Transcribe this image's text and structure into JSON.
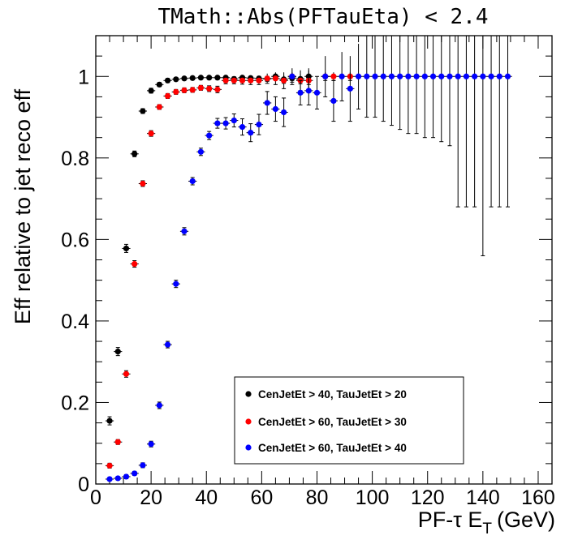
{
  "chart_data": {
    "type": "scatter",
    "title": "TMath::Abs(PFTauEta) < 2.4",
    "xlabel": "PF-τ E",
    "xlabel_subscript": "T",
    "xlabel_unit": "(GeV)",
    "ylabel": "Eff relative to jet reco eff",
    "xlim": [
      0,
      165
    ],
    "ylim": [
      0,
      1.1
    ],
    "x_ticks": [
      0,
      20,
      40,
      60,
      80,
      100,
      120,
      140,
      160
    ],
    "x_tick_labels": [
      "0",
      "20",
      "40",
      "60",
      "80",
      "100",
      "120",
      "140",
      "160"
    ],
    "y_ticks": [
      0,
      0.2,
      0.4,
      0.6,
      0.8,
      1
    ],
    "y_tick_labels": [
      "0",
      "0.2",
      "0.4",
      "0.6",
      "0.8",
      "1"
    ],
    "grid": false,
    "legend_position": "bottom-right",
    "series": [
      {
        "name": "CenJetEt > 40, TauJetEt > 20",
        "color": "#000000",
        "x": [
          5,
          8,
          11,
          14,
          17,
          20,
          23,
          26,
          29,
          32,
          35,
          38,
          41,
          44,
          47,
          50,
          53,
          56,
          59,
          62,
          65,
          68,
          71,
          74,
          77
        ],
        "y": [
          0.155,
          0.325,
          0.578,
          0.81,
          0.915,
          0.965,
          0.98,
          0.99,
          0.993,
          0.995,
          0.996,
          0.997,
          0.997,
          0.997,
          0.997,
          0.994,
          0.997,
          0.996,
          0.995,
          0.994,
          1.0,
          0.993,
          0.996,
          0.994,
          1.0
        ],
        "err": [
          0.01,
          0.01,
          0.01,
          0.007,
          0.006,
          0.006,
          0.005,
          0.005,
          0.004,
          0.004,
          0.004,
          0.004,
          0.004,
          0.004,
          0.005,
          0.005,
          0.005,
          0.005,
          0.006,
          0.006,
          0.008,
          0.01,
          0.01,
          0.012,
          0.02
        ]
      },
      {
        "name": "CenJetEt > 60, TauJetEt > 30",
        "color": "#ff0000",
        "x": [
          5,
          8,
          11,
          14,
          17,
          20,
          23,
          26,
          29,
          32,
          35,
          38,
          41,
          44,
          47,
          50,
          53,
          56,
          59,
          62,
          65,
          68,
          71,
          74,
          77,
          83,
          86,
          92
        ],
        "y": [
          0.045,
          0.103,
          0.27,
          0.54,
          0.737,
          0.86,
          0.925,
          0.952,
          0.962,
          0.966,
          0.967,
          0.972,
          0.97,
          0.968,
          0.99,
          0.99,
          0.99,
          0.99,
          0.99,
          0.995,
          0.995,
          0.99,
          1.0,
          0.99,
          0.99,
          1.0,
          1.0,
          1.0
        ],
        "err": [
          0.006,
          0.006,
          0.008,
          0.008,
          0.007,
          0.007,
          0.006,
          0.006,
          0.006,
          0.006,
          0.006,
          0.006,
          0.007,
          0.008,
          0.008,
          0.008,
          0.009,
          0.01,
          0.01,
          0.012,
          0.015,
          0.02,
          0.02,
          0.025,
          0.025,
          0.01,
          0.01,
          0.01
        ]
      },
      {
        "name": "CenJetEt > 60, TauJetEt > 40",
        "color": "#0000ff",
        "x": [
          5,
          8,
          11,
          14,
          17,
          20,
          23,
          26,
          29,
          32,
          35,
          38,
          41,
          44,
          47,
          50,
          53,
          56,
          59,
          62,
          65,
          68,
          71,
          74,
          77,
          80,
          83,
          86,
          89,
          92,
          95,
          98,
          101,
          104,
          107,
          110,
          113,
          116,
          119,
          122,
          125,
          128,
          131,
          134,
          137,
          140,
          143,
          146,
          149
        ],
        "y": [
          0.012,
          0.014,
          0.018,
          0.026,
          0.046,
          0.098,
          0.193,
          0.342,
          0.491,
          0.62,
          0.743,
          0.815,
          0.855,
          0.885,
          0.885,
          0.892,
          0.876,
          0.862,
          0.882,
          0.935,
          0.92,
          0.912,
          1.0,
          0.96,
          0.965,
          0.96,
          1.0,
          0.94,
          1.0,
          0.97,
          1.0,
          1.0,
          1.0,
          1.0,
          1.0,
          1.0,
          1.0,
          1.0,
          1.0,
          1.0,
          1.0,
          1.0,
          1.0,
          1.0,
          1.0,
          1.0,
          1.0,
          1.0,
          1.0
        ],
        "err": [
          0.004,
          0.004,
          0.005,
          0.005,
          0.006,
          0.007,
          0.008,
          0.008,
          0.009,
          0.009,
          0.009,
          0.009,
          0.01,
          0.012,
          0.014,
          0.016,
          0.02,
          0.022,
          0.025,
          0.028,
          0.03,
          0.035,
          0.01,
          0.03,
          0.035,
          0.04,
          0.05,
          0.05,
          0.06,
          0.08,
          0.08,
          0.1,
          0.1,
          0.11,
          0.12,
          0.13,
          0.14,
          0.14,
          0.15,
          0.15,
          0.16,
          0.17,
          0.32,
          0.32,
          0.32,
          0.44,
          0.32,
          0.32,
          0.32
        ]
      }
    ]
  }
}
